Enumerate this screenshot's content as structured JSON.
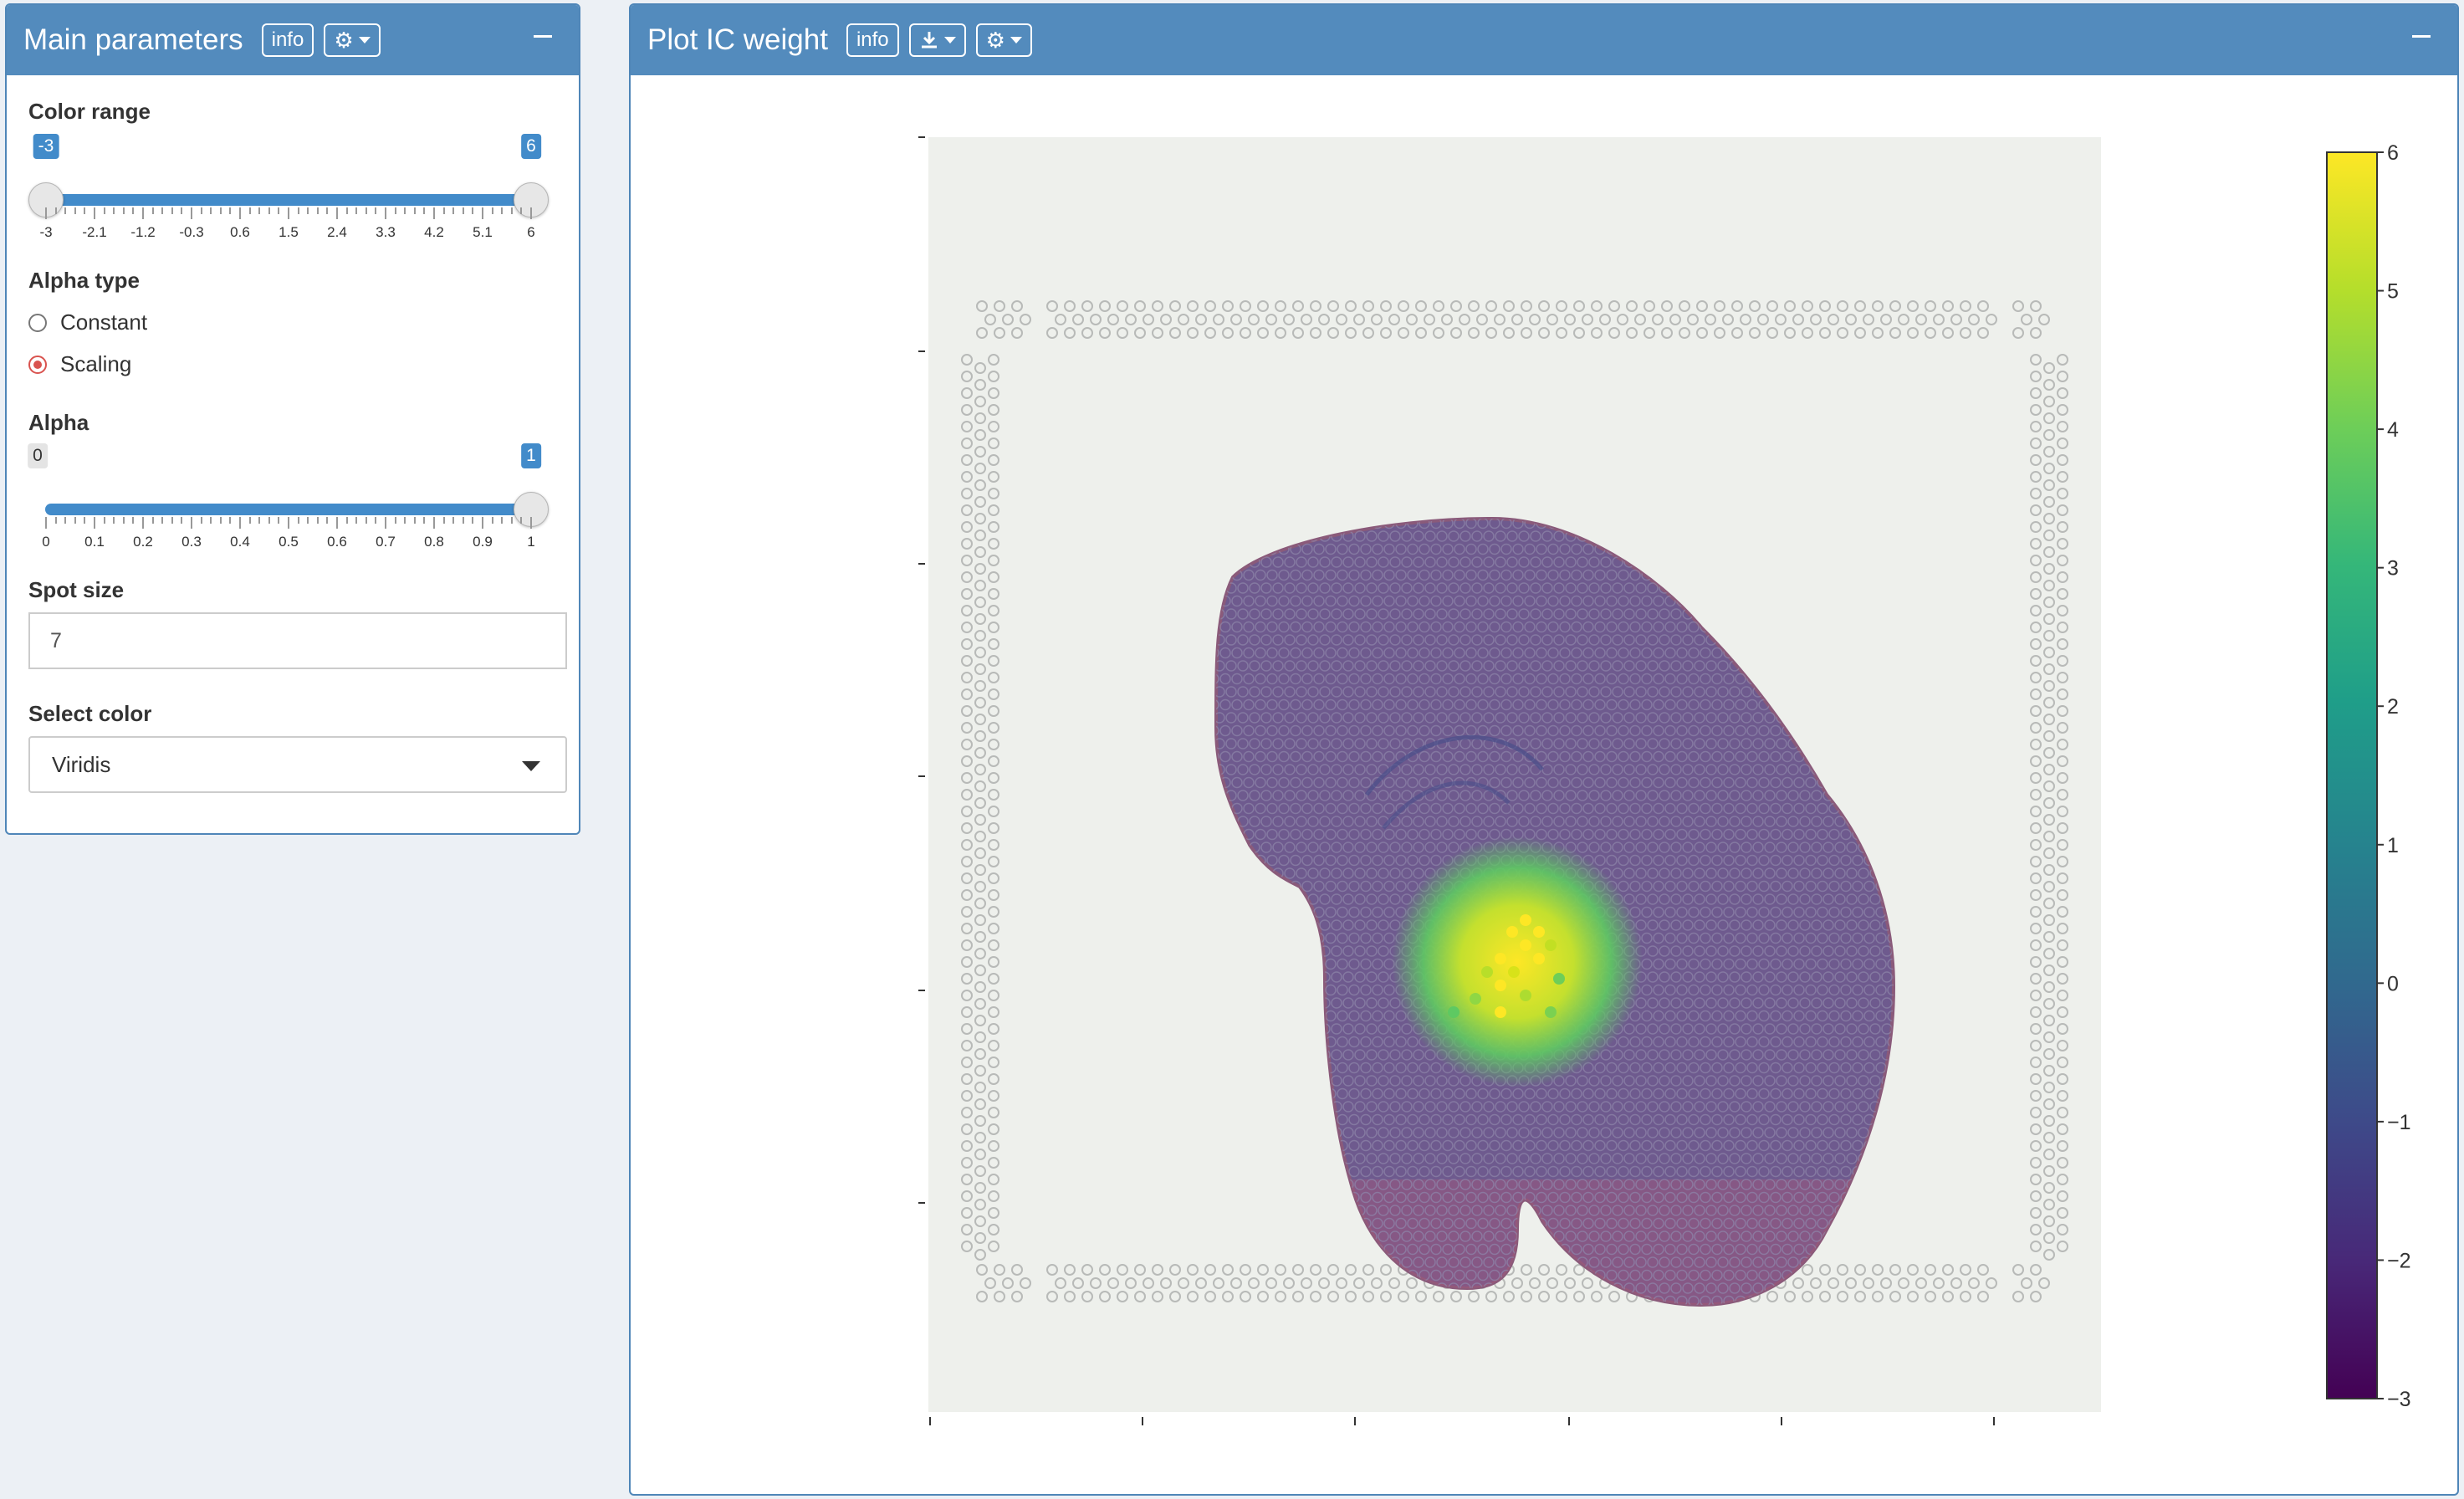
{
  "left_panel": {
    "title": "Main parameters",
    "info_label": "info",
    "color_range": {
      "label": "Color range",
      "min": -3,
      "max": 6,
      "from": -3,
      "to": 6,
      "from_label": "-3",
      "to_label": "6",
      "ticks": [
        "-3",
        "-2.1",
        "-1.2",
        "-0.3",
        "0.6",
        "1.5",
        "2.4",
        "3.3",
        "4.2",
        "5.1",
        "6"
      ]
    },
    "alpha_type": {
      "label": "Alpha type",
      "options": [
        "Constant",
        "Scaling"
      ],
      "selected": "Scaling"
    },
    "alpha": {
      "label": "Alpha",
      "min": 0,
      "max": 1,
      "value": 1,
      "min_label": "0",
      "value_label": "1",
      "ticks": [
        "0",
        "0.1",
        "0.2",
        "0.3",
        "0.4",
        "0.5",
        "0.6",
        "0.7",
        "0.8",
        "0.9",
        "1"
      ]
    },
    "spot_size": {
      "label": "Spot size",
      "value": "7"
    },
    "select_color": {
      "label": "Select color",
      "value": "Viridis"
    }
  },
  "right_panel": {
    "title": "Plot IC weight",
    "info_label": "info"
  },
  "colorbar": {
    "ticks": [
      "6",
      "5",
      "4",
      "3",
      "2",
      "1",
      "0",
      "−1",
      "−2",
      "−3"
    ],
    "colors": [
      "#fde725",
      "#b5de2b",
      "#6ece58",
      "#35b779",
      "#1f9e89",
      "#26828e",
      "#31688e",
      "#3e4989",
      "#482878",
      "#440154"
    ]
  },
  "icons": {
    "gear": "gear-icon",
    "download": "download-icon",
    "minus": "minus-icon"
  }
}
